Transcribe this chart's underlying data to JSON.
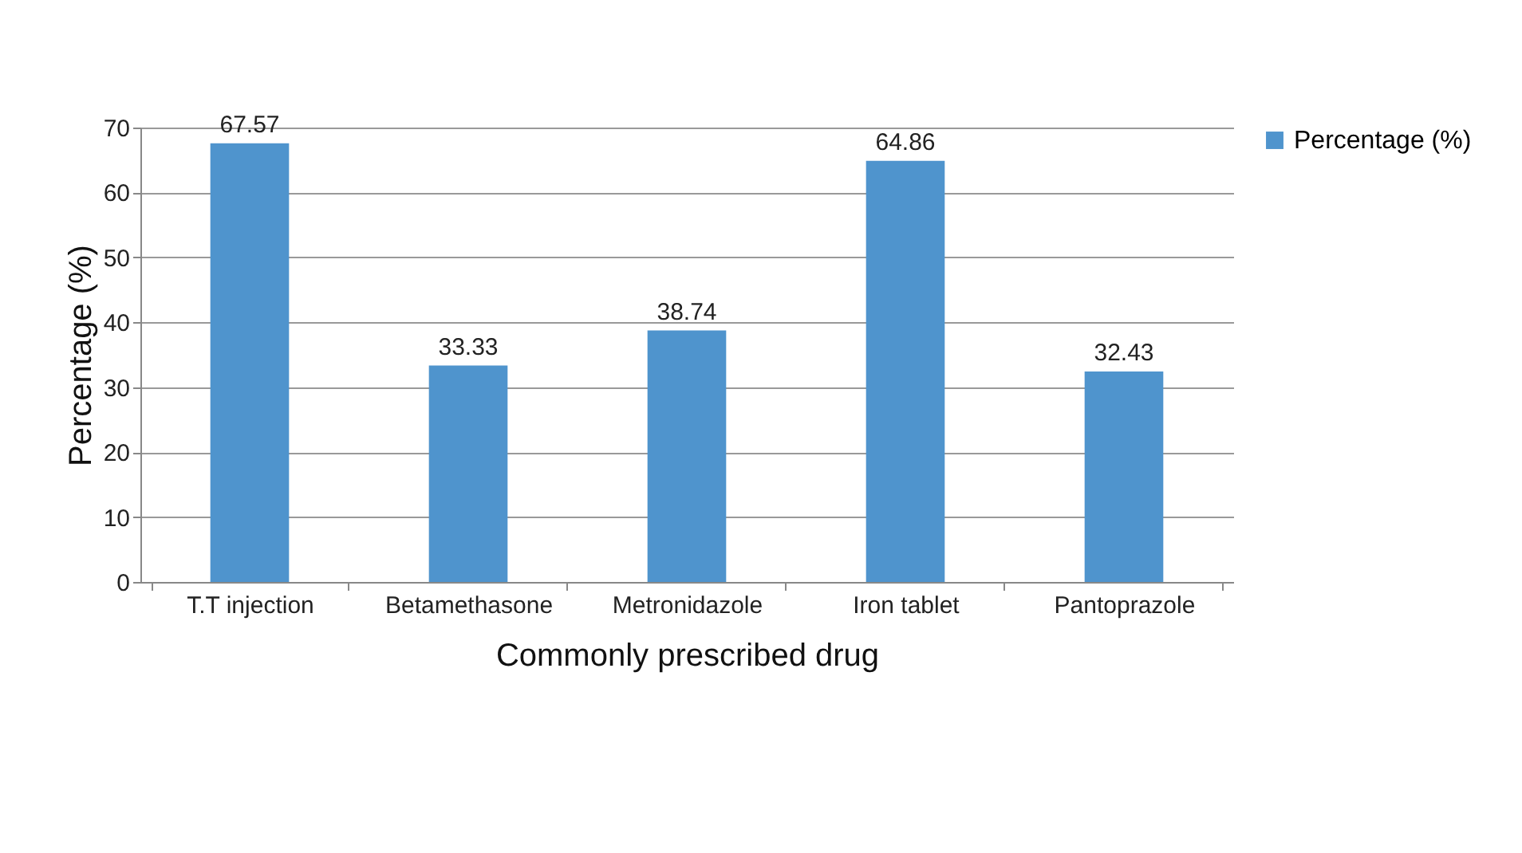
{
  "chart_data": {
    "type": "bar",
    "xlabel": "Commonly prescribed drug",
    "ylabel": "Percentage (%)",
    "categories": [
      "T.T injection",
      "Betamethasone",
      "Metronidazole",
      "Iron tablet",
      "Pantoprazole"
    ],
    "series": [
      {
        "name": "Percentage (%)",
        "color": "#4f94cd",
        "values": [
          67.57,
          33.33,
          38.74,
          64.86,
          32.43
        ]
      }
    ],
    "ylim": [
      0,
      70
    ],
    "yticks": [
      0,
      10,
      20,
      30,
      40,
      50,
      60,
      70
    ],
    "grid": "y",
    "legend": "right",
    "data_labels": true
  }
}
